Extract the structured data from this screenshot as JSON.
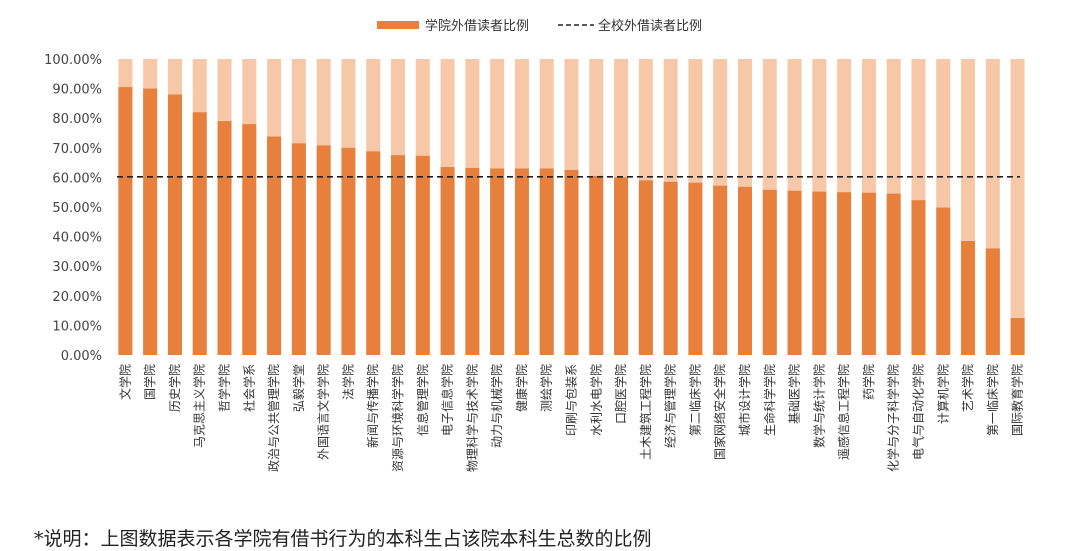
{
  "chart_data": {
    "type": "bar",
    "categories": [
      "文学院",
      "国学院",
      "历史学院",
      "马克思主义学院",
      "哲学学院",
      "社会学系",
      "政治与公共管理学院",
      "弘毅学堂",
      "外国语言文学学院",
      "法学院",
      "新闻与传播学院",
      "资源与环境科学学院",
      "信息管理学院",
      "电子信息学院",
      "物理科学与技术学院",
      "动力与机械学院",
      "健康学院",
      "测绘学院",
      "印刷与包装系",
      "水利水电学院",
      "口腔医学院",
      "土木建筑工程学院",
      "经济与管理学院",
      "第二临床学院",
      "国家网络安全学院",
      "城市设计学院",
      "生命科学学院",
      "基础医学院",
      "数学与统计学院",
      "遥感信息工程学院",
      "药学院",
      "化学与分子科学学院",
      "电气与自动化学院",
      "计算机学院",
      "艺术学院",
      "第一临床学院",
      "国际教育学院"
    ],
    "series": [
      {
        "name": "学院外借读者比例",
        "values": [
          90.5,
          90.0,
          88.0,
          82.0,
          79.0,
          78.0,
          73.8,
          71.5,
          70.8,
          70.0,
          68.8,
          67.5,
          67.3,
          63.5,
          63.2,
          63.0,
          63.0,
          63.0,
          62.5,
          60.5,
          60.0,
          59.0,
          58.5,
          58.2,
          57.2,
          56.8,
          55.8,
          55.5,
          55.2,
          55.0,
          54.8,
          54.5,
          52.3,
          49.8,
          38.5,
          36.0,
          12.5
        ],
        "color": "#E6803C",
        "background_color": "#F6C8A8"
      }
    ],
    "reference_line": {
      "name": "全校外借读者比例",
      "value": 60.2,
      "style": "dashed",
      "color": "#222222"
    },
    "ylim": [
      0,
      100
    ],
    "yticks": [
      "0.00%",
      "10.00%",
      "20.00%",
      "30.00%",
      "40.00%",
      "50.00%",
      "60.00%",
      "70.00%",
      "80.00%",
      "90.00%",
      "100.00%"
    ],
    "legend_position": "top-center",
    "grid": false
  },
  "note": "*说明：上图数据表示各学院有借书行为的本科生占该院本科生总数的比例"
}
